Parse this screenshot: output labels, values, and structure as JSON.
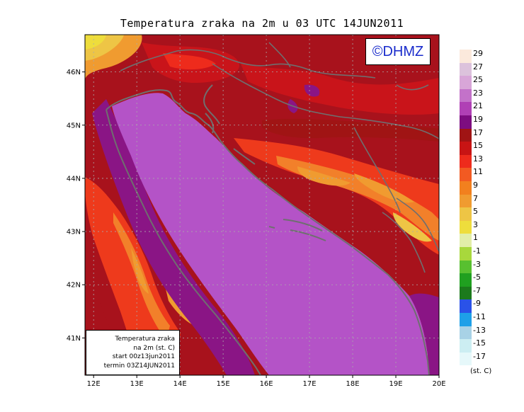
{
  "title": "Temperatura zraka na 2m u 03 UTC 14JUN2011",
  "copyright": "©DHMZ",
  "info_box": {
    "line1": "Temperatura zraka",
    "line2": "na 2m (st. C)",
    "line3": "start 00z13jun2011",
    "line4": "termin 03Z14JUN2011"
  },
  "axes": {
    "x_ticks": [
      "12E",
      "13E",
      "14E",
      "15E",
      "16E",
      "17E",
      "18E",
      "19E",
      "20E"
    ],
    "y_ticks": [
      "41N",
      "42N",
      "43N",
      "44N",
      "45N",
      "46N"
    ],
    "lon_range": [
      11.8,
      20.0
    ],
    "lat_range": [
      40.3,
      46.7
    ],
    "grid": true
  },
  "legend": {
    "labels": [
      "29",
      "27",
      "25",
      "23",
      "21",
      "19",
      "17",
      "15",
      "13",
      "11",
      "9",
      "7",
      "5",
      "3",
      "1",
      "-1",
      "-3",
      "-5",
      "-7",
      "-9",
      "-11",
      "-13",
      "-15",
      "-17"
    ],
    "colors": [
      "#fbe9dc",
      "#dcc2dc",
      "#d8a6d8",
      "#c372c9",
      "#b040b5",
      "#7d0d80",
      "#a01414",
      "#c81414",
      "#ee2b1c",
      "#f25a22",
      "#f2801e",
      "#f09b30",
      "#eec545",
      "#eedd3c",
      "#e2eea8",
      "#a8d83c",
      "#58c030",
      "#20a020",
      "#1c7a1c",
      "#2a52e8",
      "#1ea0e8",
      "#a8d2e6",
      "#cceef2",
      "#e6f8fa"
    ],
    "units": "(st. C)"
  },
  "colors": {
    "sea": "#b453c7",
    "coast_band": "#8a1585",
    "land_warm": "#a8121c",
    "land_hot": "#c9141a",
    "mountains": "#ee3a1c",
    "mountains_high": "#f2802a",
    "peaks": "#eec545",
    "coastline": "#6f6f6f"
  }
}
